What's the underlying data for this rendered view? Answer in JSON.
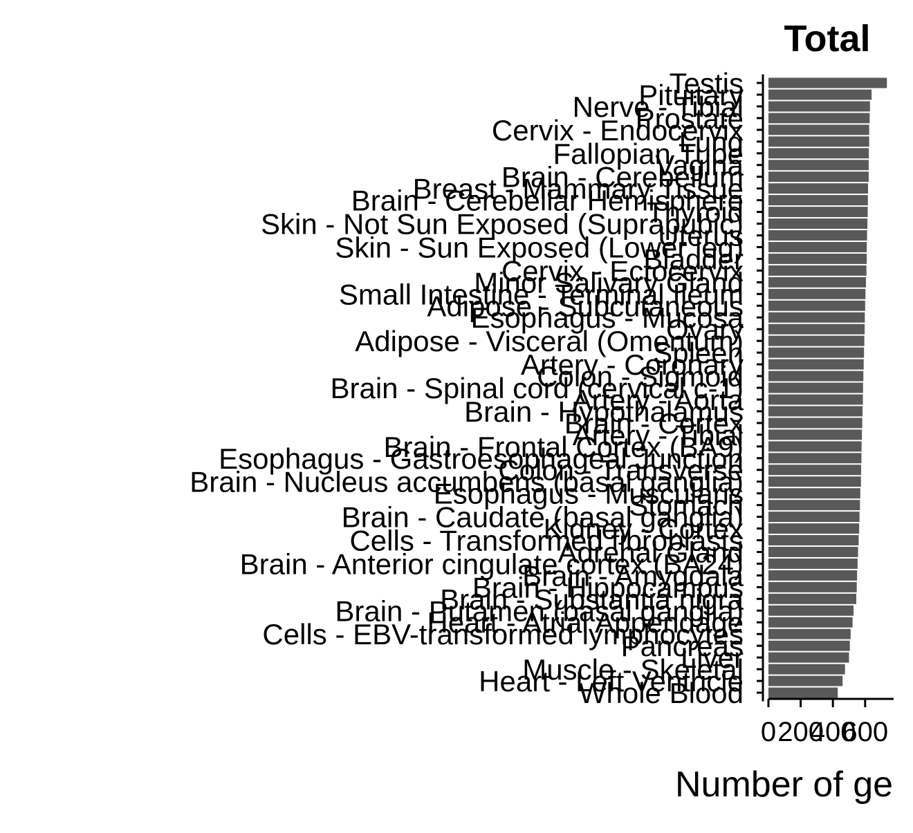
{
  "chart_data": {
    "type": "bar",
    "orientation": "horizontal",
    "title": "Total",
    "xlabel": "Number of ge",
    "ylabel": "",
    "bar_color": "#595959",
    "xlim": [
      0,
      800
    ],
    "xticks": [
      "0",
      "200",
      "400",
      "600"
    ],
    "grid": false,
    "categories": [
      "Testis",
      "Pituitary",
      "Nerve - Tibial",
      "Prostate",
      "Cervix - Endocervix",
      "Lung",
      "Fallopian Tube",
      "Vagina",
      "Brain - Cerebellum",
      "Breast - Mammary Tissue",
      "Brain - Cerebellar Hemisphere",
      "Thyroid",
      "Skin - Not Sun Exposed (Suprapubic)",
      "Uterus",
      "Skin - Sun Exposed (Lower leg)",
      "Bladder",
      "Cervix - Ectocervix",
      "Minor Salivary Gland",
      "Small Intestine - Terminal Ileum",
      "Adipose - Subcutaneous",
      "Esophagus - Mucosa",
      "Ovary",
      "Adipose - Visceral (Omentum)",
      "Spleen",
      "Artery - Coronary",
      "Colon - Sigmoid",
      "Brain - Spinal cord (cervical c-1)",
      "Artery - Aorta",
      "Brain - Hypothalamus",
      "Brain - Cortex",
      "Artery - Tibial",
      "Brain - Frontal Cortex (BA9)",
      "Esophagus - Gastroesophageal Junction",
      "Colon - Transverse",
      "Brain - Nucleus accumbens (basal ganglia)",
      "Esophagus - Muscularis",
      "Stomach",
      "Brain - Caudate (basal ganglia)",
      "Kidney - Cortex",
      "Cells - Transformed fibroblasts",
      "Adrenal Gland",
      "Brain - Anterior cingulate cortex (BA24)",
      "Brain - Amygdala",
      "Brain - Hippocampus",
      "Brain - Substantia nigra",
      "Brain - Putamen (basal ganglia)",
      "Heart - Atrial Appendage",
      "Cells - EBV-transformed lymphocytes",
      "Pancreas",
      "Liver",
      "Muscle - Skeletal",
      "Heart - Left Ventricle",
      "Whole Blood"
    ],
    "values": [
      735,
      640,
      630,
      628,
      625,
      625,
      623,
      622,
      622,
      618,
      617,
      616,
      614,
      612,
      610,
      610,
      608,
      605,
      602,
      600,
      598,
      597,
      595,
      593,
      591,
      589,
      587,
      586,
      584,
      582,
      580,
      578,
      577,
      575,
      574,
      570,
      568,
      565,
      563,
      560,
      556,
      553,
      550,
      548,
      545,
      528,
      522,
      510,
      505,
      500,
      475,
      460,
      430
    ]
  }
}
